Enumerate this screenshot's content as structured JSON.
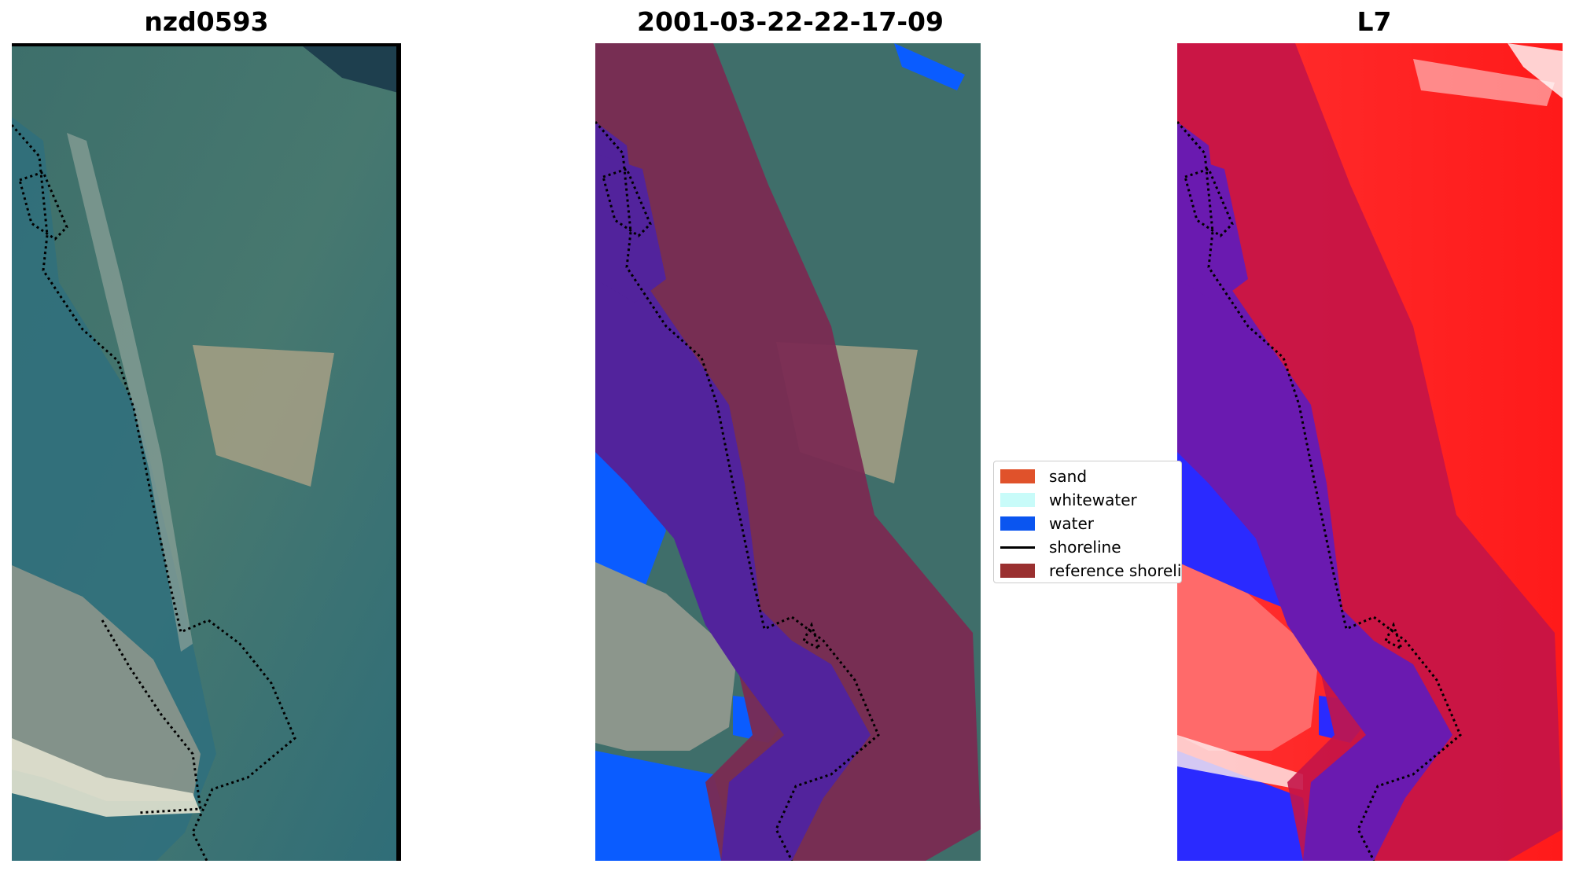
{
  "panels": [
    {
      "title": "nzd0593"
    },
    {
      "title": "2001-03-22-22-17-09"
    },
    {
      "title": "L7"
    }
  ],
  "legend": {
    "items": [
      {
        "label": "sand",
        "color": "#e0522b",
        "kind": "patch"
      },
      {
        "label": "whitewater",
        "color": "#c8fbf9",
        "kind": "patch"
      },
      {
        "label": "water",
        "color": "#0a55f0",
        "kind": "patch"
      },
      {
        "label": "shoreline",
        "color": "#000000",
        "kind": "line"
      },
      {
        "label": "reference shoreline buffer",
        "color": "#9a3030",
        "kind": "patch"
      }
    ]
  },
  "colors": {
    "satellite_base": "#3f6e6a",
    "buffer": "#7a2a52",
    "water_overlay": "#5226a0",
    "water": "#0a5cff",
    "index_red": "#ff2020",
    "index_blue": "#2020ff"
  }
}
